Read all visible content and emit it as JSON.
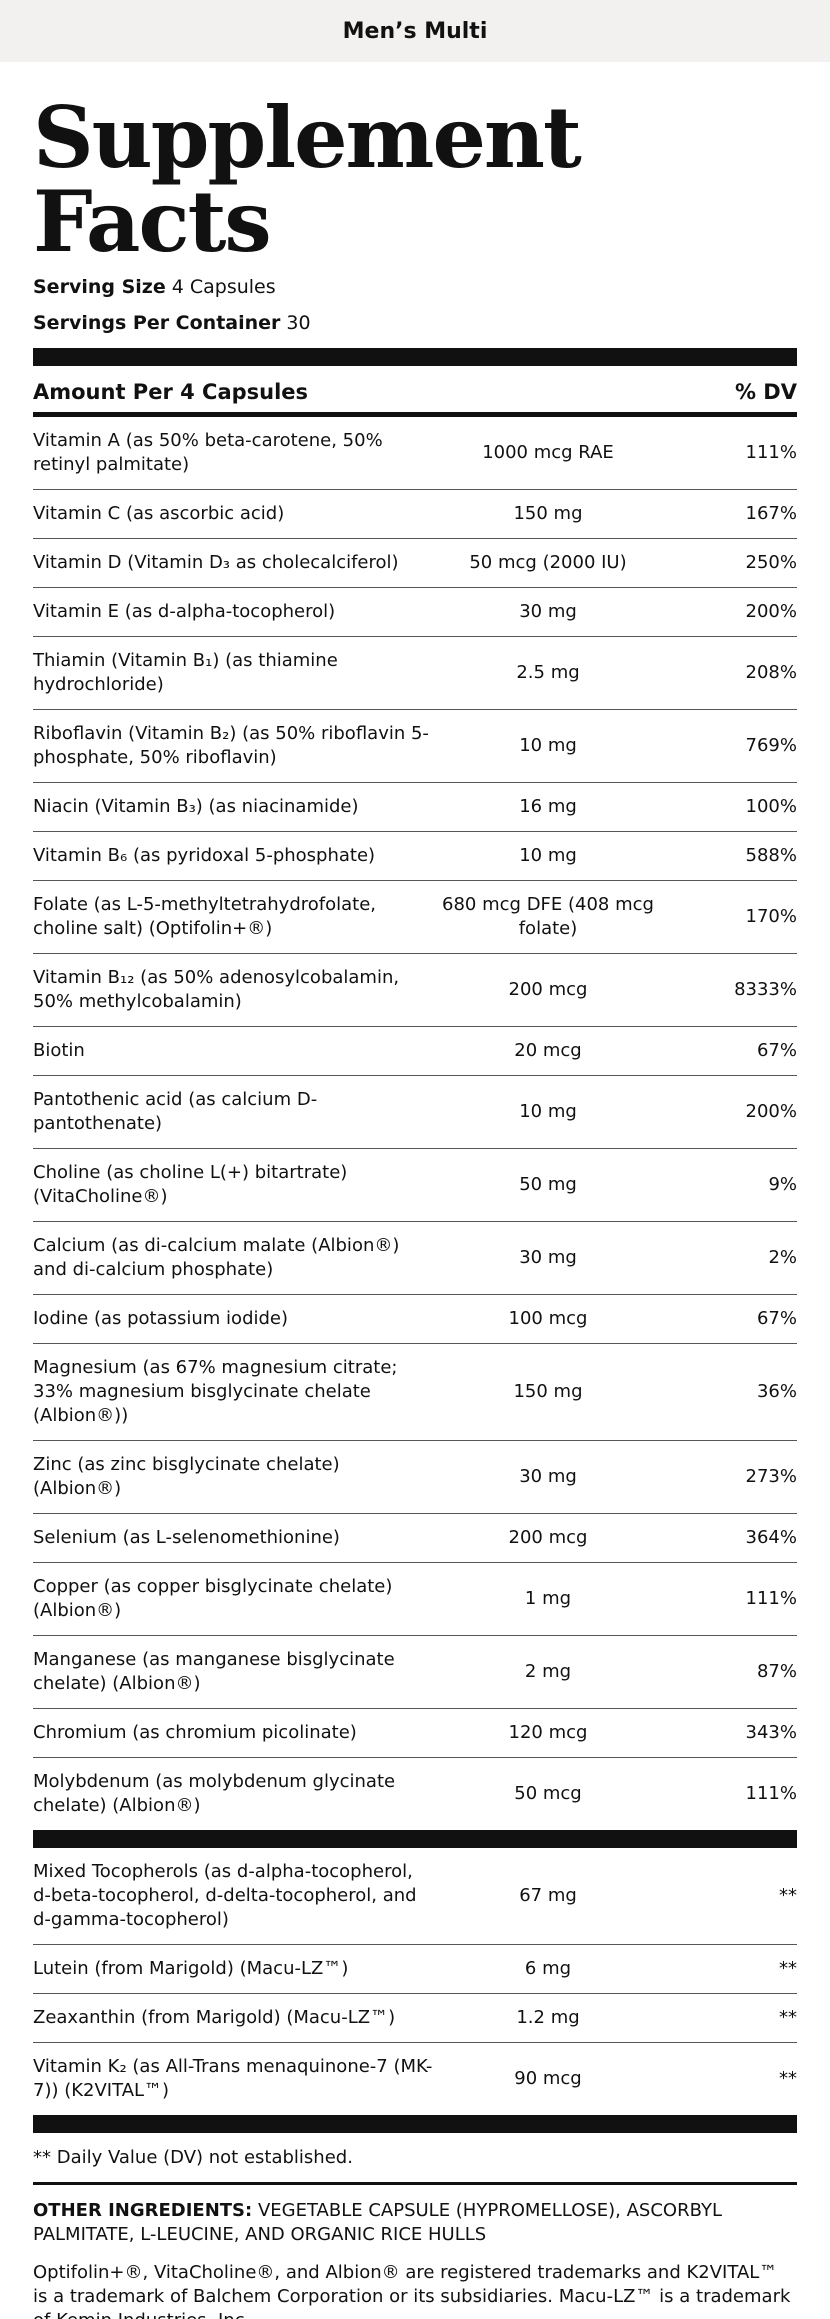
{
  "header": {
    "title": "Men’s Multi"
  },
  "panel": {
    "title": "Supplement Facts",
    "serving_size_label": "Serving Size",
    "serving_size_value": "4 Capsules",
    "servings_label": "Servings Per Container",
    "servings_value": "30",
    "table_header": {
      "amount": "Amount Per 4 Capsules",
      "dv": "% DV"
    },
    "rows": [
      [
        "Vitamin A (as 50% beta-carotene, 50% retinyl palmitate)",
        "1000 mcg RAE",
        "111%"
      ],
      [
        "Vitamin C (as ascorbic acid)",
        "150 mg",
        "167%"
      ],
      [
        "Vitamin D (Vitamin D₃ as cholecalciferol)",
        "50 mcg (2000 IU)",
        "250%"
      ],
      [
        "Vitamin E (as d-alpha-tocopherol)",
        "30 mg",
        "200%"
      ],
      [
        "Thiamin (Vitamin B₁) (as thiamine hydrochloride)",
        "2.5 mg",
        "208%"
      ],
      [
        "Riboflavin (Vitamin B₂) (as 50% riboflavin 5-phosphate, 50% riboflavin)",
        "10 mg",
        "769%"
      ],
      [
        "Niacin (Vitamin B₃) (as niacinamide)",
        "16 mg",
        "100%"
      ],
      [
        "Vitamin B₆ (as pyridoxal 5-phosphate)",
        "10 mg",
        "588%"
      ],
      [
        "Folate (as L-5-methyltetrahydrofolate, choline salt) (Optifolin+®)",
        "680 mcg DFE (408 mcg folate)",
        "170%"
      ],
      [
        "Vitamin B₁₂ (as 50% adenosylcobalamin, 50% methylcobalamin)",
        "200 mcg",
        "8333%"
      ],
      [
        "Biotin",
        "20 mcg",
        "67%"
      ],
      [
        "Pantothenic acid (as calcium D-pantothenate)",
        "10 mg",
        "200%"
      ],
      [
        "Choline (as choline L(+) bitartrate) (VitaCholine®)",
        "50 mg",
        "9%"
      ],
      [
        "Calcium (as di-calcium malate (Albion®) and di-calcium phosphate)",
        "30 mg",
        "2%"
      ],
      [
        "Iodine (as potassium iodide)",
        "100 mcg",
        "67%"
      ],
      [
        "Magnesium (as 67% magnesium citrate; 33% magnesium bisglycinate chelate (Albion®))",
        "150 mg",
        "36%"
      ],
      [
        "Zinc (as zinc bisglycinate chelate) (Albion®)",
        "30 mg",
        "273%"
      ],
      [
        "Selenium (as L-selenomethionine)",
        "200 mcg",
        "364%"
      ],
      [
        "Copper (as copper bisglycinate chelate) (Albion®)",
        "1 mg",
        "111%"
      ],
      [
        "Manganese (as manganese bisglycinate chelate) (Albion®)",
        "2 mg",
        "87%"
      ],
      [
        "Chromium (as chromium picolinate)",
        "120 mcg",
        "343%"
      ],
      [
        "Molybdenum (as molybdenum glycinate chelate) (Albion®)",
        "50 mcg",
        "111%"
      ]
    ],
    "other_rows": [
      [
        "Mixed Tocopherols (as d-alpha-tocopherol, d-beta-tocopherol, d-delta-tocopherol, and d-gamma-tocopherol)",
        "67 mg",
        "**"
      ],
      [
        "Lutein (from Marigold) (Macu-LZ™)",
        "6 mg",
        "**"
      ],
      [
        "Zeaxanthin (from Marigold) (Macu-LZ™)",
        "1.2 mg",
        "**"
      ],
      [
        "Vitamin K₂ (as All-Trans menaquinone-7 (MK-7)) (K2VITAL™)",
        "90 mcg",
        "**"
      ]
    ],
    "footnote": "** Daily Value (DV) not established.",
    "other_ingredients_label": "OTHER INGREDIENTS:",
    "other_ingredients": "VEGETABLE CAPSULE (HYPROMELLOSE), ASCORBYL PALMITATE, L-LEUCINE, AND ORGANIC RICE HULLS",
    "trademarks": "Optifolin+®, VitaCholine®, and Albion® are registered trademarks and K2VITAL™ is a trademark of Balchem Corporation or its subsidiaries. Macu-LZ™ is a trademark of Kemin Industries, Inc."
  }
}
